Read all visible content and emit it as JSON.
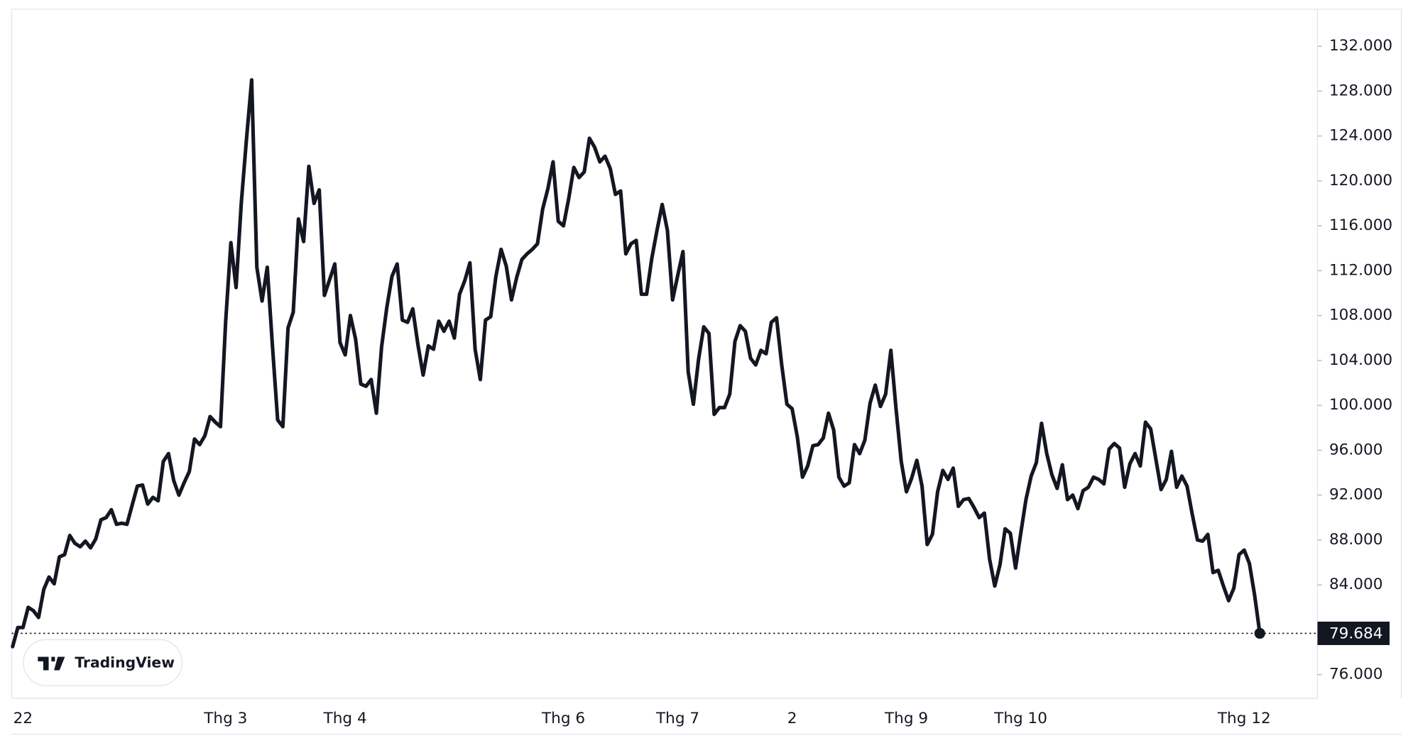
{
  "chart_data": {
    "type": "line",
    "watermark": "TradingView",
    "categories": [
      null,
      null,
      "22",
      null,
      null,
      null,
      null,
      null,
      null,
      null,
      null,
      null,
      null,
      null,
      null,
      null,
      null,
      null,
      null,
      null,
      null,
      null,
      null,
      null,
      null,
      null,
      null,
      null,
      null,
      null,
      null,
      null,
      null,
      null,
      null,
      null,
      null,
      null,
      null,
      null,
      null,
      "Thg 3",
      null,
      null,
      null,
      null,
      null,
      null,
      null,
      null,
      null,
      null,
      null,
      null,
      null,
      null,
      null,
      null,
      null,
      null,
      null,
      null,
      null,
      null,
      "Thg 4",
      null,
      null,
      null,
      null,
      null,
      null,
      null,
      null,
      null,
      null,
      null,
      null,
      null,
      null,
      null,
      null,
      null,
      null,
      null,
      null,
      null,
      null,
      null,
      null,
      null,
      null,
      null,
      null,
      null,
      null,
      null,
      null,
      null,
      null,
      null,
      null,
      null,
      null,
      null,
      null,
      null,
      "Thg 6",
      null,
      null,
      null,
      null,
      null,
      null,
      null,
      null,
      null,
      null,
      null,
      null,
      null,
      null,
      null,
      null,
      null,
      null,
      null,
      null,
      null,
      "Thg 7",
      null,
      null,
      null,
      null,
      null,
      null,
      null,
      null,
      null,
      null,
      null,
      null,
      null,
      null,
      null,
      null,
      null,
      null,
      null,
      null,
      null,
      "2",
      null,
      null,
      null,
      null,
      null,
      null,
      null,
      null,
      null,
      null,
      null,
      null,
      null,
      null,
      null,
      null,
      null,
      null,
      null,
      null,
      null,
      "Thg 9",
      null,
      null,
      null,
      null,
      null,
      null,
      null,
      null,
      null,
      null,
      null,
      null,
      null,
      null,
      null,
      null,
      null,
      null,
      null,
      null,
      null,
      "Thg 10",
      null,
      null,
      null,
      null,
      null,
      null,
      null,
      null,
      null,
      null,
      null,
      null,
      null,
      null,
      null,
      null,
      null,
      null,
      null,
      null,
      null,
      null,
      null,
      null,
      null,
      null,
      null,
      null,
      null,
      null,
      null,
      null,
      null,
      null,
      null,
      null,
      null,
      null,
      null,
      null,
      null,
      null,
      "Thg 12",
      null,
      null,
      null
    ],
    "values": [
      78500,
      80200,
      80200,
      82000,
      81700,
      81100,
      83600,
      84700,
      84100,
      86500,
      86700,
      88400,
      87700,
      87400,
      87900,
      87300,
      88100,
      89800,
      90000,
      90700,
      89400,
      89500,
      89400,
      91100,
      92800,
      92900,
      91200,
      91800,
      91500,
      95000,
      95700,
      93300,
      92000,
      93100,
      94100,
      97000,
      96500,
      97300,
      99000,
      98500,
      98100,
      107500,
      114500,
      110500,
      118000,
      123700,
      129000,
      112300,
      109300,
      112300,
      105300,
      98700,
      98100,
      106900,
      108300,
      116600,
      114600,
      121300,
      118000,
      119200,
      109800,
      111200,
      112600,
      105600,
      104500,
      108000,
      105900,
      101900,
      101700,
      102300,
      99300,
      105200,
      108700,
      111500,
      112600,
      107600,
      107400,
      108600,
      105400,
      102700,
      105300,
      105000,
      107500,
      106600,
      107500,
      106000,
      109900,
      111100,
      112700,
      105000,
      102300,
      107600,
      107900,
      111500,
      113900,
      112400,
      109400,
      111400,
      113000,
      113500,
      113900,
      114400,
      117500,
      119300,
      121700,
      116400,
      116000,
      118400,
      121200,
      120300,
      120800,
      123800,
      123000,
      121700,
      122200,
      121100,
      118800,
      119100,
      113500,
      114400,
      114700,
      109900,
      109900,
      113100,
      115600,
      117900,
      115600,
      109400,
      111600,
      113700,
      103000,
      100100,
      104100,
      107000,
      106400,
      99200,
      99800,
      99800,
      101000,
      105700,
      107100,
      106600,
      104200,
      103600,
      104900,
      104600,
      107400,
      107800,
      103600,
      100100,
      99700,
      97200,
      93600,
      94600,
      96400,
      96500,
      97100,
      99300,
      97800,
      93600,
      92800,
      93100,
      96500,
      95700,
      96900,
      100200,
      101800,
      99900,
      101000,
      104900,
      99700,
      95000,
      92300,
      93500,
      95100,
      92800,
      87600,
      88500,
      92300,
      94200,
      93400,
      94400,
      91000,
      91600,
      91700,
      90900,
      90000,
      90400,
      86300,
      83900,
      85800,
      89000,
      88600,
      85500,
      88600,
      91600,
      93700,
      94900,
      98400,
      95700,
      93800,
      92600,
      94700,
      91600,
      92000,
      90800,
      92400,
      92700,
      93600,
      93400,
      93000,
      96100,
      96600,
      96200,
      92700,
      94800,
      95700,
      94600,
      98500,
      97900,
      95200,
      92500,
      93400,
      95900,
      92700,
      93700,
      92800,
      90300,
      88000,
      87900,
      88500,
      85100,
      85300,
      83900,
      82600,
      83700,
      86700,
      87100,
      85900,
      83100,
      79684
    ],
    "value_labels": [
      null,
      null,
      null,
      null,
      null,
      null,
      null,
      null,
      null,
      null,
      null,
      null,
      null,
      null,
      null,
      null,
      null,
      null,
      null,
      null,
      null,
      null,
      null,
      null,
      null,
      null,
      null,
      null,
      null,
      null,
      null,
      null,
      null,
      null,
      null,
      null,
      null,
      null,
      null,
      null,
      null,
      null,
      null,
      null,
      null,
      null,
      null,
      null,
      null,
      null,
      null,
      null,
      null,
      null,
      null,
      null,
      null,
      null,
      null,
      null,
      null,
      null,
      null,
      null,
      null,
      null,
      null,
      null,
      null,
      null,
      null,
      null,
      null,
      null,
      null,
      null,
      null,
      null,
      null,
      null,
      null,
      null,
      null,
      null,
      null,
      null,
      null,
      null,
      null,
      null,
      null,
      null,
      null,
      null,
      null,
      null,
      null,
      null,
      null,
      null,
      null,
      null,
      null,
      null,
      null,
      null,
      null,
      null,
      null,
      null,
      null,
      null,
      null,
      null,
      null,
      null,
      null,
      null,
      null,
      null,
      null,
      null,
      null,
      null,
      null,
      null,
      null,
      null,
      null,
      null,
      null,
      null,
      null,
      null,
      null,
      null,
      null,
      null,
      null,
      null,
      null,
      null,
      null,
      null,
      null,
      null,
      null,
      null,
      null,
      null,
      null,
      null,
      null,
      null,
      null,
      null,
      null,
      null,
      null,
      null,
      null,
      null,
      null,
      null,
      null,
      null,
      null,
      null,
      null,
      null,
      null,
      null,
      null,
      null,
      null,
      null,
      null,
      null,
      null,
      null,
      null,
      null,
      null,
      null,
      null,
      null,
      null,
      null,
      null,
      null,
      null,
      null,
      null,
      null,
      null,
      null,
      null,
      null,
      null,
      null,
      null,
      null,
      null,
      null,
      null,
      null,
      null,
      null,
      null,
      null,
      null,
      null,
      null,
      null,
      null,
      null,
      null,
      null,
      null,
      null,
      null,
      null,
      null,
      null,
      null,
      null,
      null,
      null,
      null,
      null,
      null,
      null,
      null,
      null,
      null,
      null,
      null,
      null,
      null,
      null,
      "79.684"
    ],
    "color": "#131722",
    "ylim": [
      73900,
      135300
    ],
    "yticks": [
      {
        "value": 76000,
        "label": "76.000"
      },
      {
        "value": 80000,
        "label": "80.000"
      },
      {
        "value": 84000,
        "label": "84.000"
      },
      {
        "value": 88000,
        "label": "88.000"
      },
      {
        "value": 92000,
        "label": "92.000"
      },
      {
        "value": 96000,
        "label": "96.000"
      },
      {
        "value": 100000,
        "label": "100.000"
      },
      {
        "value": 104000,
        "label": "104.000"
      },
      {
        "value": 108000,
        "label": "108.000"
      },
      {
        "value": 112000,
        "label": "112.000"
      },
      {
        "value": 116000,
        "label": "116.000"
      },
      {
        "value": 120000,
        "label": "120.000"
      },
      {
        "value": 124000,
        "label": "124.000"
      },
      {
        "value": 128000,
        "label": "128.000"
      },
      {
        "value": 132000,
        "label": "132.000"
      }
    ],
    "grid": false
  }
}
